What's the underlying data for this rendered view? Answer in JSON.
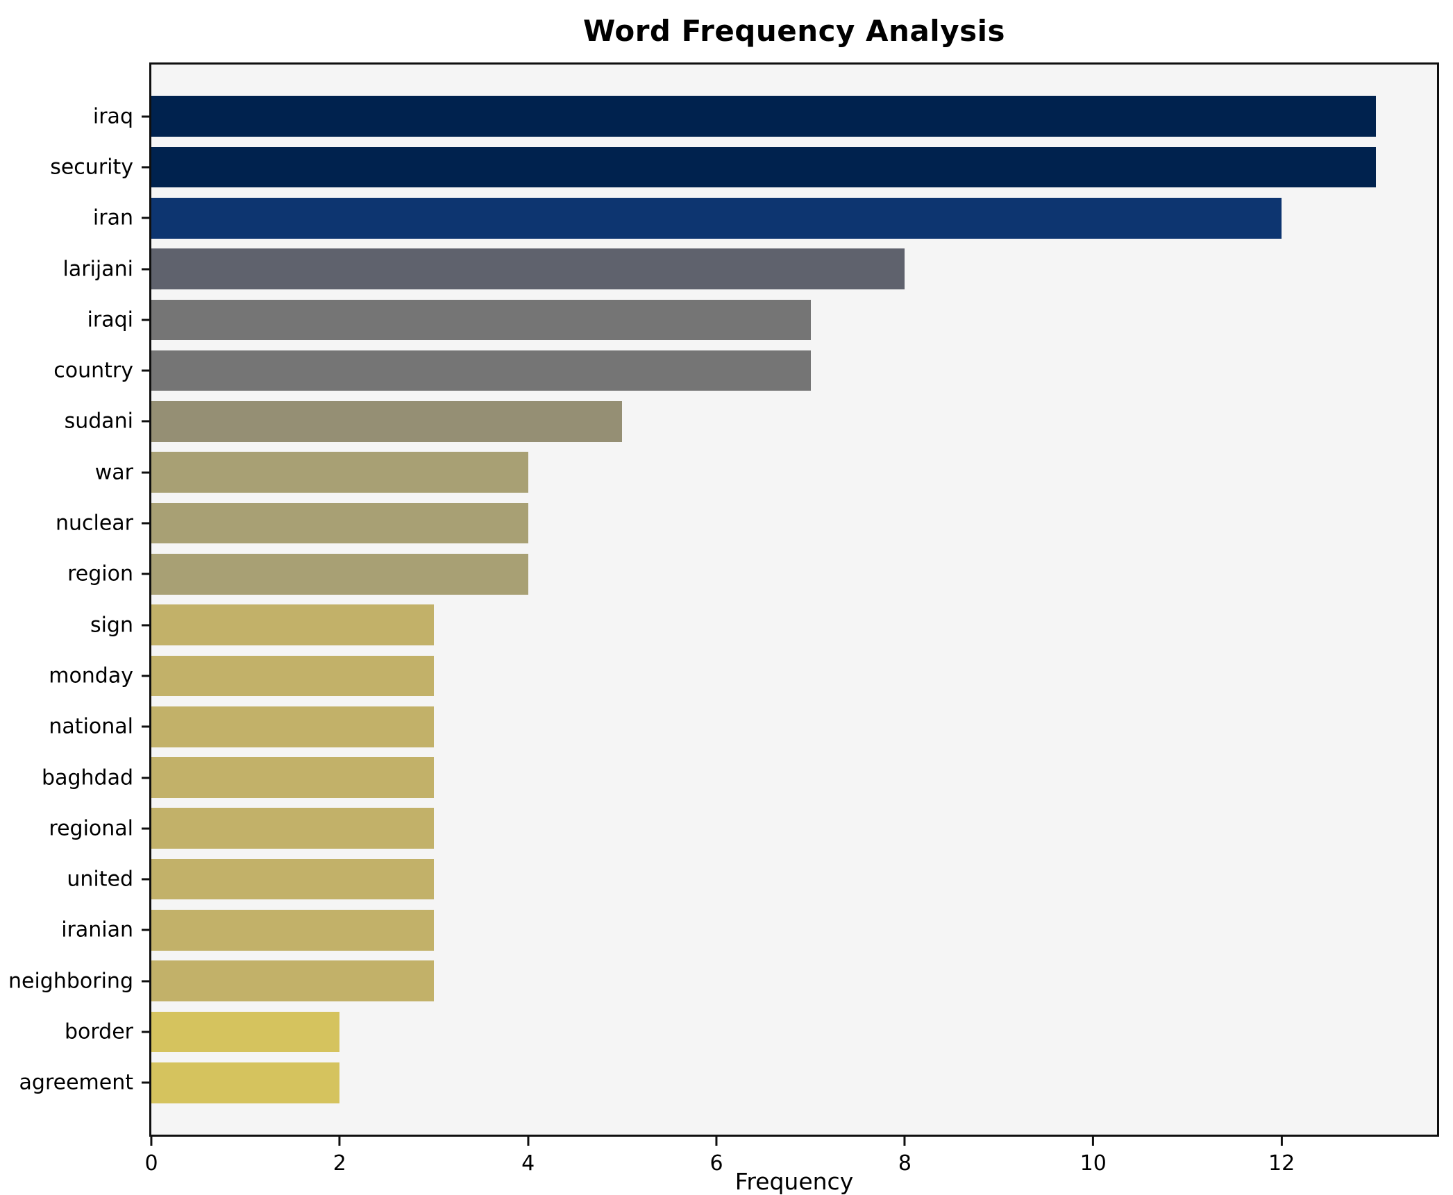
{
  "title": "Word Frequency Analysis",
  "chart_data": {
    "type": "bar",
    "orientation": "horizontal",
    "title": "Word Frequency Analysis",
    "xlabel": "Frequency",
    "ylabel": "",
    "categories": [
      "iraq",
      "security",
      "iran",
      "larijani",
      "iraqi",
      "country",
      "sudani",
      "war",
      "nuclear",
      "region",
      "sign",
      "monday",
      "national",
      "baghdad",
      "regional",
      "united",
      "iranian",
      "neighboring",
      "border",
      "agreement"
    ],
    "values": [
      13,
      13,
      12,
      8,
      7,
      7,
      5,
      4,
      4,
      4,
      3,
      3,
      3,
      3,
      3,
      3,
      3,
      3,
      2,
      2
    ],
    "bar_colors": [
      "#00224e",
      "#00224e",
      "#0d3570",
      "#5f626d",
      "#757575",
      "#757575",
      "#958f74",
      "#a8a074",
      "#a8a074",
      "#a8a074",
      "#c2b169",
      "#c2b169",
      "#c2b169",
      "#c2b169",
      "#c2b169",
      "#c2b169",
      "#c2b169",
      "#c2b169",
      "#d5c35e",
      "#d5c35e"
    ],
    "x_ticks": [
      0,
      2,
      4,
      6,
      8,
      10,
      12
    ],
    "xlim": [
      0,
      13.65
    ],
    "grid": false,
    "legend_position": "none",
    "plot_background": "#f5f5f5",
    "figure_background": "#ffffff",
    "spine_color": "#0f0f0f",
    "text_color": "#000000"
  }
}
